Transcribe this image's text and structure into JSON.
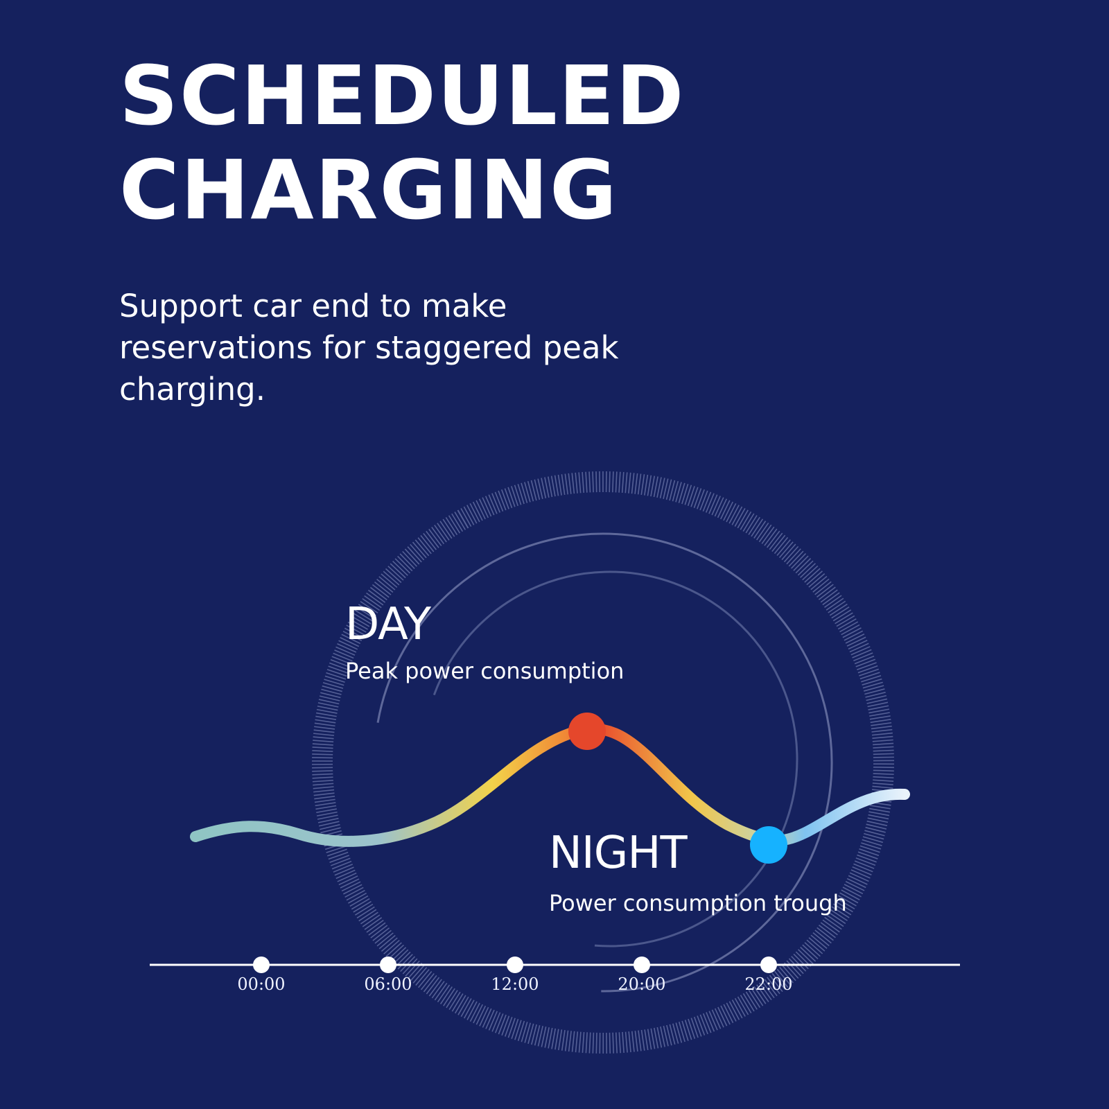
{
  "title": {
    "line1": "SCHEDULED",
    "line2": "CHARGING"
  },
  "description": {
    "line1": "Support car end to make",
    "line2": "reservations for staggered peak",
    "line3": "charging."
  },
  "day_label": {
    "title": "DAY",
    "subtitle": "Peak power consumption"
  },
  "night_label": {
    "title": "NIGHT",
    "subtitle": "Power consumption trough"
  },
  "timeline": {
    "ticks": [
      "00:00",
      "06:00",
      "12:00",
      "20:00",
      "22:00"
    ]
  },
  "colors": {
    "background": "#15215e",
    "peak_marker": "#e5472b",
    "trough_marker": "#16b2ff",
    "curve_start": "#8fc5c4",
    "curve_mid": "#f2d24a",
    "curve_peak": "#e9552f",
    "curve_end": "#e8f1fb"
  }
}
